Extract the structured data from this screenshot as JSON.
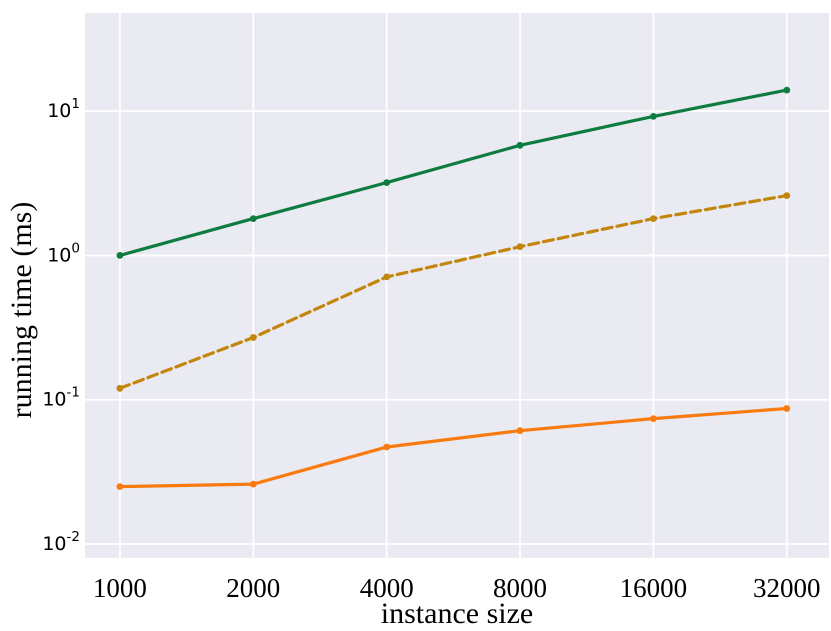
{
  "figure": {
    "background": "#FFFFFF",
    "plot_background": "#EAEAF2",
    "grid_color": "#FFFFFF",
    "text_color": "#000000"
  },
  "chart_data": {
    "type": "line",
    "title": "",
    "xlabel": "instance size",
    "ylabel": "running time (ms)",
    "xscale": "log2",
    "yscale": "log10",
    "grid": true,
    "legend": null,
    "xlim": [
      834,
      39850
    ],
    "ylim": [
      0.008,
      47.9
    ],
    "x": [
      1000,
      2000,
      4000,
      8000,
      16000,
      32000
    ],
    "x_tick_labels": [
      "1000",
      "2000",
      "4000",
      "8000",
      "16000",
      "32000"
    ],
    "y_ticks": [
      {
        "value": 10,
        "label": "10^1"
      },
      {
        "value": 1,
        "label": "10^0"
      },
      {
        "value": 0.1,
        "label": "10^-1"
      },
      {
        "value": 0.01,
        "label": "10^-2"
      }
    ],
    "series": [
      {
        "name": "green-solid",
        "color": "#0E7C3F",
        "style": "solid",
        "marker": "circle",
        "values": [
          1.0,
          1.8,
          3.2,
          5.8,
          9.2,
          14.0
        ]
      },
      {
        "name": "gold-dashed",
        "color": "#C3860D",
        "style": "dashed",
        "marker": "circle",
        "values": [
          0.12,
          0.27,
          0.71,
          1.15,
          1.8,
          2.6
        ]
      },
      {
        "name": "orange-solid",
        "color": "#F97B0F",
        "style": "solid",
        "marker": "circle",
        "values": [
          0.025,
          0.026,
          0.047,
          0.061,
          0.074,
          0.087
        ]
      }
    ]
  }
}
